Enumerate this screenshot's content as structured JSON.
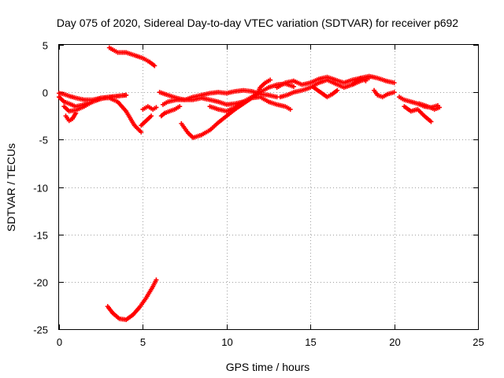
{
  "chart_data": {
    "type": "scatter",
    "title": "Day 075 of 2020, Sidereal Day-to-day VTEC variation (SDTVAR) for receiver p692",
    "xlabel": "GPS time / hours",
    "ylabel": "SDTVAR / TECUs",
    "xlim": [
      0,
      25
    ],
    "ylim": [
      -25,
      5
    ],
    "xticks": [
      0,
      5,
      10,
      15,
      20,
      25
    ],
    "yticks": [
      5,
      0,
      -5,
      -10,
      -15,
      -20,
      -25
    ],
    "xtick_labels": [
      "0",
      "5",
      "10",
      "15",
      "20",
      "25"
    ],
    "ytick_labels": [
      "5",
      "0",
      "-5",
      "-10",
      "-15",
      "-20",
      "-25"
    ],
    "grid": true,
    "marker": "+",
    "series": [
      {
        "name": "SDTVAR",
        "color": "#ff0000",
        "tracks": [
          {
            "x": [
              0.0,
              0.3,
              0.6,
              1.0,
              1.5,
              2.0,
              2.5,
              3.0,
              3.5,
              4.0
            ],
            "y": [
              -0.5,
              -1.0,
              -1.2,
              -1.5,
              -1.3,
              -1.0,
              -0.7,
              -0.5,
              -0.4,
              -0.3
            ]
          },
          {
            "x": [
              0.3,
              0.6,
              1.0,
              1.5,
              2.0,
              2.5,
              3.0,
              3.5,
              4.0,
              4.5,
              4.9
            ],
            "y": [
              -1.5,
              -2.0,
              -1.9,
              -1.5,
              -1.0,
              -0.6,
              -0.6,
              -1.0,
              -2.0,
              -3.5,
              -4.2
            ]
          },
          {
            "x": [
              0.4,
              0.6,
              0.8,
              1.0
            ],
            "y": [
              -2.5,
              -3.0,
              -2.8,
              -2.2
            ]
          },
          {
            "x": [
              0.0,
              0.3,
              0.6,
              1.0,
              1.5,
              2.0,
              2.5,
              3.0,
              3.5,
              4.0
            ],
            "y": [
              -0.1,
              -0.2,
              -0.4,
              -0.6,
              -0.8,
              -0.8,
              -0.6,
              -0.5,
              -0.4,
              -0.3
            ]
          },
          {
            "x": [
              3.0,
              3.5,
              4.0,
              4.5,
              5.0,
              5.4,
              5.7
            ],
            "y": [
              4.7,
              4.2,
              4.2,
              3.9,
              3.6,
              3.2,
              2.8
            ]
          },
          {
            "x": [
              4.9,
              5.2,
              5.5
            ],
            "y": [
              -3.5,
              -3.0,
              -2.5
            ]
          },
          {
            "x": [
              5.0,
              5.3,
              5.6,
              5.8
            ],
            "y": [
              -1.8,
              -1.5,
              -1.8,
              -1.6
            ]
          },
          {
            "x": [
              2.9,
              3.2,
              3.6,
              4.0,
              4.4,
              4.8,
              5.2,
              5.6,
              5.8
            ],
            "y": [
              -22.6,
              -23.3,
              -23.9,
              -24.0,
              -23.5,
              -22.7,
              -21.7,
              -20.5,
              -19.8
            ]
          },
          {
            "x": [
              6.0,
              6.5,
              7.0,
              7.5,
              8.0,
              8.5,
              9.0,
              9.5,
              10.0,
              10.5,
              11.0,
              11.5,
              12.0,
              12.5,
              13.0
            ],
            "y": [
              0.0,
              -0.3,
              -0.6,
              -0.8,
              -0.5,
              -0.3,
              -0.1,
              0.0,
              -0.1,
              0.1,
              0.2,
              0.1,
              -0.2,
              -0.3,
              -0.5
            ]
          },
          {
            "x": [
              6.2,
              6.5,
              7.0,
              7.5,
              8.0,
              8.5,
              9.0,
              9.5,
              10.0,
              10.5,
              11.0
            ],
            "y": [
              -1.3,
              -1.0,
              -0.8,
              -0.8,
              -0.8,
              -0.6,
              -0.8,
              -1.0,
              -1.3,
              -1.2,
              -1.0
            ]
          },
          {
            "x": [
              6.1,
              6.3,
              6.6,
              6.9,
              7.2
            ],
            "y": [
              -2.5,
              -2.2,
              -2.0,
              -1.8,
              -1.5
            ]
          },
          {
            "x": [
              7.3,
              7.7,
              8.0,
              8.5,
              9.0,
              9.5,
              10.0,
              10.5,
              11.0,
              11.5,
              12.0,
              12.5,
              13.0,
              13.5,
              13.8
            ],
            "y": [
              -3.3,
              -4.3,
              -4.8,
              -4.5,
              -4.0,
              -3.2,
              -2.5,
              -1.8,
              -1.2,
              -0.6,
              -0.5,
              -1.0,
              -1.3,
              -1.5,
              -1.8
            ]
          },
          {
            "x": [
              9.0,
              9.5,
              10.0,
              10.5,
              11.0,
              11.5,
              12.0,
              12.5,
              13.0,
              13.5,
              14.0
            ],
            "y": [
              -1.5,
              -1.8,
              -2.0,
              -1.6,
              -1.0,
              -0.5,
              0.0,
              0.5,
              0.8,
              0.9,
              0.6
            ]
          },
          {
            "x": [
              11.5,
              11.8,
              12.0,
              12.3,
              12.6
            ],
            "y": [
              -0.6,
              -0.2,
              0.5,
              1.0,
              1.3
            ]
          },
          {
            "x": [
              13.0,
              13.5,
              14.0,
              14.5,
              15.0,
              15.5,
              16.0,
              16.5,
              17.0,
              17.5,
              18.0,
              18.5,
              19.0,
              19.5,
              20.0
            ],
            "y": [
              0.5,
              1.0,
              1.2,
              0.8,
              1.0,
              1.4,
              1.6,
              1.3,
              1.0,
              1.3,
              1.5,
              1.7,
              1.5,
              1.2,
              1.0
            ]
          },
          {
            "x": [
              13.2,
              13.6,
              14.0,
              14.5,
              15.0,
              15.5,
              16.0,
              16.5,
              17.0,
              17.5,
              18.0,
              18.5
            ],
            "y": [
              -0.5,
              -0.3,
              0.0,
              0.2,
              0.5,
              1.0,
              1.3,
              0.9,
              0.5,
              0.8,
              1.2,
              1.5
            ]
          },
          {
            "x": [
              15.2,
              15.6,
              16.0,
              16.3,
              16.6
            ],
            "y": [
              0.5,
              0.0,
              -0.5,
              -0.2,
              0.2
            ]
          },
          {
            "x": [
              17.5,
              17.8,
              18.0,
              18.3
            ],
            "y": [
              0.8,
              1.2,
              1.5,
              1.2
            ]
          },
          {
            "x": [
              18.8,
              19.0,
              19.3,
              19.6,
              20.0
            ],
            "y": [
              0.2,
              -0.3,
              -0.5,
              -0.2,
              0.0
            ]
          },
          {
            "x": [
              20.3,
              20.6,
              21.0,
              21.4,
              21.8,
              22.2,
              22.6
            ],
            "y": [
              -0.5,
              -0.8,
              -1.0,
              -1.2,
              -1.5,
              -1.6,
              -1.4
            ]
          },
          {
            "x": [
              20.6,
              21.0,
              21.4,
              21.8,
              22.2
            ],
            "y": [
              -1.5,
              -2.0,
              -1.8,
              -2.5,
              -3.1
            ]
          },
          {
            "x": [
              21.5,
              22.0,
              22.4,
              22.7
            ],
            "y": [
              -1.2,
              -1.5,
              -1.8,
              -1.6
            ]
          }
        ]
      }
    ]
  }
}
